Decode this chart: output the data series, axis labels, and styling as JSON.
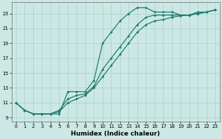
{
  "xlabel": "Humidex (Indice chaleur)",
  "xlim": [
    -0.5,
    23.5
  ],
  "ylim": [
    8.5,
    24.5
  ],
  "yticks": [
    9,
    11,
    13,
    15,
    17,
    19,
    21,
    23
  ],
  "xticks": [
    0,
    1,
    2,
    3,
    4,
    5,
    6,
    7,
    8,
    9,
    10,
    11,
    12,
    13,
    14,
    15,
    16,
    17,
    18,
    19,
    20,
    21,
    22,
    23
  ],
  "bg_color": "#cce8e4",
  "grid_color": "#aacfca",
  "line_color": "#1a7a6e",
  "line1_x": [
    0,
    1,
    2,
    3,
    4,
    5,
    6,
    7,
    8,
    9,
    10,
    11,
    12,
    13,
    14,
    15,
    16,
    17,
    18,
    19,
    20,
    21,
    22,
    23
  ],
  "line1_y": [
    11,
    10,
    9.5,
    9.5,
    9.5,
    9.5,
    12.5,
    12.5,
    12.5,
    14,
    19,
    20.5,
    22,
    23,
    23.8,
    23.8,
    23.2,
    23.2,
    23.2,
    22.8,
    22.8,
    23.2,
    23.2,
    23.5
  ],
  "line2_x": [
    0,
    1,
    2,
    3,
    4,
    5,
    6,
    7,
    8,
    9,
    10,
    11,
    12,
    13,
    14,
    15,
    16,
    17,
    18,
    19,
    20,
    21,
    22,
    23
  ],
  "line2_y": [
    11,
    10,
    9.5,
    9.5,
    9.5,
    10,
    11.5,
    12,
    12.2,
    13.2,
    15.5,
    17,
    18.5,
    20,
    21.5,
    22.5,
    22.8,
    22.8,
    22.8,
    22.8,
    22.8,
    23.0,
    23.2,
    23.5
  ],
  "line3_x": [
    0,
    1,
    2,
    3,
    4,
    5,
    6,
    7,
    8,
    9,
    10,
    11,
    12,
    13,
    14,
    15,
    16,
    17,
    18,
    19,
    20,
    21,
    22,
    23
  ],
  "line3_y": [
    11,
    10,
    9.5,
    9.5,
    9.5,
    9.8,
    11.0,
    11.5,
    12.0,
    13.0,
    14.5,
    16.0,
    17.5,
    19.0,
    20.5,
    21.5,
    22.0,
    22.2,
    22.5,
    22.7,
    22.8,
    23.0,
    23.2,
    23.5
  ]
}
